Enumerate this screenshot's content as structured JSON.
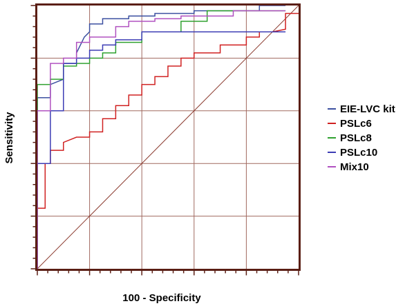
{
  "chart_data": {
    "type": "line",
    "title": "",
    "xlabel": "100 - Specificity",
    "ylabel": "Sensitivity",
    "xlim": [
      0,
      100
    ],
    "ylim": [
      0,
      100
    ],
    "grid": true,
    "legend_position": "right",
    "diagonal_reference": true,
    "colors": {
      "frame": "#5a1e14",
      "grid": "#a0685f",
      "diagonal": "#8b3a2e"
    },
    "series": [
      {
        "name": "EIE-LVC kit",
        "color": "#3b4fa0",
        "x": [
          0,
          0,
          5,
          5,
          10,
          10,
          15,
          15,
          18,
          20,
          20,
          25,
          25,
          35,
          35,
          45,
          45,
          60,
          60,
          85,
          85,
          95
        ],
        "y": [
          0,
          65,
          65,
          70,
          72,
          78,
          78,
          82,
          88,
          90,
          93,
          93,
          95,
          95,
          96,
          96,
          97,
          97,
          98,
          98,
          100,
          100
        ]
      },
      {
        "name": "PSLc6",
        "color": "#d02020",
        "x": [
          0,
          0,
          3,
          3,
          5,
          5,
          10,
          10,
          15,
          20,
          20,
          25,
          25,
          30,
          30,
          35,
          35,
          40,
          40,
          45,
          45,
          50,
          50,
          55,
          55,
          60,
          60,
          70,
          70,
          80,
          80,
          85,
          85,
          90,
          95,
          95,
          100
        ],
        "y": [
          0,
          23,
          23,
          40,
          40,
          45,
          45,
          48,
          50,
          50,
          52,
          52,
          57,
          57,
          62,
          62,
          66,
          66,
          70,
          70,
          73,
          73,
          77,
          77,
          80,
          80,
          82,
          82,
          85,
          85,
          88,
          88,
          90,
          90,
          91,
          97,
          97
        ]
      },
      {
        "name": "PSLc8",
        "color": "#2ea02e",
        "x": [
          0,
          0,
          5,
          5,
          10,
          10,
          15,
          15,
          20,
          20,
          25,
          25,
          30,
          30,
          35,
          40,
          40,
          55,
          55,
          65,
          65,
          95
        ],
        "y": [
          0,
          70,
          70,
          72,
          72,
          77,
          77,
          78,
          78,
          80,
          80,
          82,
          82,
          86,
          86,
          86,
          90,
          90,
          94,
          94,
          98,
          98
        ]
      },
      {
        "name": "PSLc10",
        "color": "#3c3cb4",
        "x": [
          0,
          0,
          5,
          5,
          10,
          10,
          15,
          15,
          20,
          20,
          25,
          25,
          30,
          30,
          40,
          40,
          95
        ],
        "y": [
          0,
          40,
          40,
          60,
          60,
          78,
          78,
          80,
          80,
          83,
          83,
          85,
          85,
          87,
          87,
          90,
          90
        ]
      },
      {
        "name": "Mix10",
        "color": "#b050c0",
        "x": [
          0,
          0,
          5,
          5,
          10,
          10,
          15,
          15,
          20,
          20,
          30,
          30,
          35,
          35,
          45,
          45,
          55,
          55,
          75,
          75,
          95
        ],
        "y": [
          0,
          60,
          60,
          78,
          78,
          80,
          80,
          86,
          86,
          88,
          88,
          92,
          92,
          94,
          94,
          95,
          95,
          96,
          96,
          98,
          98
        ]
      }
    ]
  }
}
